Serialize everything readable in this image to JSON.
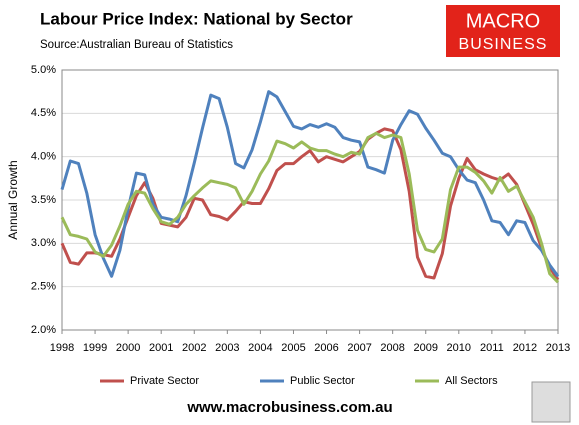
{
  "chart_data": {
    "type": "line",
    "title": "Labour Price Index: National by Sector",
    "subtitle": "Source:Australian Bureau of Statistics",
    "ylabel": "Annual Growth",
    "logo": [
      "MACRO",
      "BUSINESS"
    ],
    "footer": "www.macrobusiness.com.au",
    "xlim": [
      1998,
      2013
    ],
    "xticks": [
      1998,
      1999,
      2000,
      2001,
      2002,
      2003,
      2004,
      2005,
      2006,
      2007,
      2008,
      2009,
      2010,
      2011,
      2012,
      2013
    ],
    "ylim": [
      2,
      5
    ],
    "yticks": [
      {
        "value": 2,
        "label": "2.0%"
      },
      {
        "value": 2.5,
        "label": "2.5%"
      },
      {
        "value": 3,
        "label": "3.0%"
      },
      {
        "value": 3.5,
        "label": "3.5%"
      },
      {
        "value": 4,
        "label": "4.0%"
      },
      {
        "value": 4.5,
        "label": "4.5%"
      },
      {
        "value": 5,
        "label": "5.0%"
      }
    ],
    "grid": true,
    "series": [
      {
        "name": "Private Sector",
        "color": "#c0504d",
        "values": [
          3.0,
          2.78,
          2.76,
          2.89,
          2.89,
          2.87,
          2.85,
          3.05,
          3.3,
          3.55,
          3.7,
          3.52,
          3.23,
          3.21,
          3.19,
          3.3,
          3.52,
          3.5,
          3.33,
          3.31,
          3.27,
          3.37,
          3.48,
          3.46,
          3.46,
          3.63,
          3.84,
          3.92,
          3.92,
          4.0,
          4.07,
          3.94,
          4.0,
          3.97,
          3.94,
          4.0,
          4.06,
          4.2,
          4.27,
          4.32,
          4.3,
          4.08,
          3.6,
          2.84,
          2.62,
          2.6,
          2.88,
          3.43,
          3.75,
          3.98,
          3.85,
          3.8,
          3.76,
          3.73,
          3.8,
          3.68,
          3.45,
          3.22,
          2.95,
          2.72,
          2.58
        ]
      },
      {
        "name": "Public Sector",
        "color": "#4f81bd",
        "values": [
          3.62,
          3.95,
          3.92,
          3.58,
          3.1,
          2.83,
          2.62,
          2.92,
          3.4,
          3.81,
          3.79,
          3.45,
          3.3,
          3.28,
          3.25,
          3.55,
          3.93,
          4.33,
          4.71,
          4.67,
          4.34,
          3.92,
          3.87,
          4.08,
          4.4,
          4.75,
          4.69,
          4.52,
          4.35,
          4.32,
          4.37,
          4.34,
          4.38,
          4.34,
          4.22,
          4.19,
          4.17,
          3.88,
          3.85,
          3.81,
          4.19,
          4.37,
          4.53,
          4.49,
          4.33,
          4.19,
          4.04,
          4.0,
          3.85,
          3.73,
          3.7,
          3.5,
          3.26,
          3.24,
          3.1,
          3.26,
          3.24,
          3.03,
          2.92,
          2.75,
          2.62
        ]
      },
      {
        "name": "All Sectors",
        "color": "#9bbb59",
        "values": [
          3.3,
          3.1,
          3.08,
          3.05,
          2.9,
          2.85,
          2.98,
          3.2,
          3.45,
          3.6,
          3.58,
          3.4,
          3.25,
          3.22,
          3.3,
          3.45,
          3.55,
          3.64,
          3.72,
          3.7,
          3.68,
          3.64,
          3.45,
          3.6,
          3.8,
          3.95,
          4.18,
          4.15,
          4.1,
          4.17,
          4.1,
          4.07,
          4.07,
          4.03,
          4.0,
          4.05,
          4.03,
          4.22,
          4.27,
          4.22,
          4.25,
          4.22,
          3.8,
          3.15,
          2.93,
          2.9,
          3.05,
          3.62,
          3.88,
          3.88,
          3.82,
          3.72,
          3.58,
          3.76,
          3.6,
          3.66,
          3.48,
          3.3,
          3.0,
          2.65,
          2.55
        ]
      }
    ]
  }
}
